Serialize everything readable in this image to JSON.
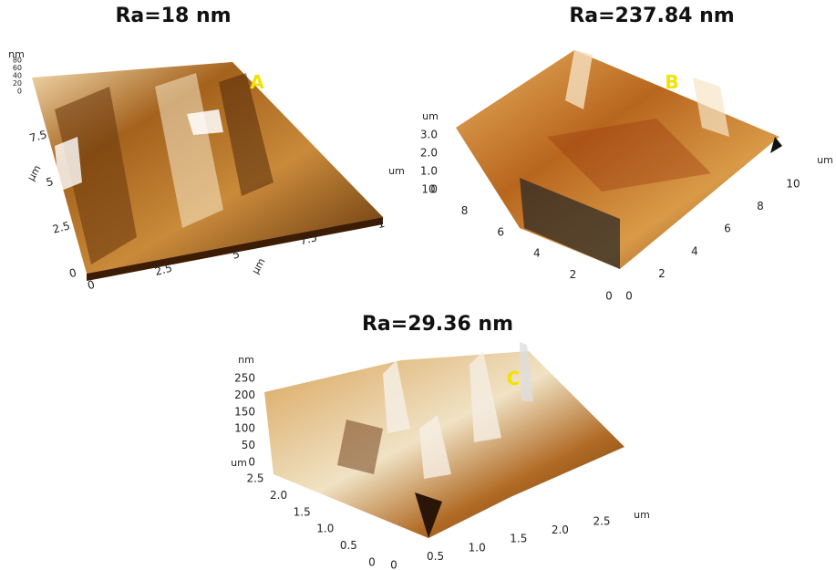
{
  "panels": [
    {
      "title": "Ra=18 nm",
      "label": "A",
      "z": {
        "unit": "nm",
        "ticks": [
          "0",
          "20",
          "40",
          "60",
          "80"
        ]
      },
      "y": {
        "unit": "µm",
        "ticks": [
          "0",
          "2.5",
          "5",
          "7.5"
        ]
      },
      "x": {
        "unit": "µm",
        "ticks": [
          "0",
          "2.5",
          "5",
          "7.5",
          "1"
        ]
      }
    },
    {
      "title": "Ra=237.84 nm",
      "label": "B",
      "z": {
        "unit": "um",
        "ticks": [
          "0",
          "1.0",
          "2.0",
          "3.0"
        ]
      },
      "y": {
        "unit": "um",
        "ticks": [
          "0",
          "2",
          "4",
          "6",
          "8",
          "10"
        ]
      },
      "x": {
        "unit": "um",
        "ticks": [
          "0",
          "2",
          "4",
          "6",
          "8",
          "10"
        ]
      }
    },
    {
      "title": "Ra=29.36 nm",
      "label": "C",
      "z": {
        "unit": "nm",
        "ticks": [
          "0",
          "50",
          "100",
          "150",
          "200",
          "250"
        ]
      },
      "y": {
        "unit": "um",
        "ticks": [
          "0",
          "0.5",
          "1.0",
          "1.5",
          "2.0",
          "2.5"
        ]
      },
      "x": {
        "unit": "um",
        "ticks": [
          "0",
          "0.5",
          "1.0",
          "1.5",
          "2.0",
          "2.5"
        ]
      }
    }
  ]
}
